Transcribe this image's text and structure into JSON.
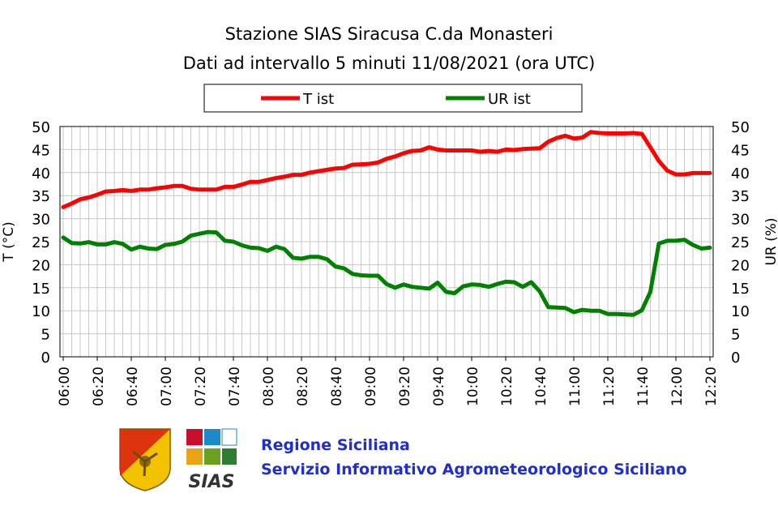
{
  "title_line1": "Stazione SIAS Siracusa C.da Monasteri",
  "title_line2": "Dati ad intervallo 5 minuti 11/08/2021 (ora UTC)",
  "footer": {
    "line1": "Regione Siciliana",
    "line2": "Servizio Informativo Agrometeorologico Siciliano",
    "logo_text": "SIAS"
  },
  "chart_data": {
    "type": "line",
    "title": "Stazione SIAS Siracusa C.da Monasteri / Dati ad intervallo 5 minuti 11/08/2021 (ora UTC)",
    "ylabel_left": "T (°C)",
    "ylabel_right": "UR (%)",
    "ylim": [
      0,
      50
    ],
    "yticks": [
      0,
      5,
      10,
      15,
      20,
      25,
      30,
      35,
      40,
      45,
      50
    ],
    "grid": true,
    "legend_position": "top",
    "x_tick_labels": [
      "06:00",
      "06:20",
      "06:40",
      "07:00",
      "07:20",
      "07:40",
      "08:00",
      "08:20",
      "08:40",
      "09:00",
      "09:20",
      "09:40",
      "10:00",
      "10:20",
      "10:40",
      "11:00",
      "11:20",
      "11:40",
      "12:00",
      "12:20"
    ],
    "x": [
      "06:00",
      "06:05",
      "06:10",
      "06:15",
      "06:20",
      "06:25",
      "06:30",
      "06:35",
      "06:40",
      "06:45",
      "06:50",
      "06:55",
      "07:00",
      "07:05",
      "07:10",
      "07:15",
      "07:20",
      "07:25",
      "07:30",
      "07:35",
      "07:40",
      "07:45",
      "07:50",
      "07:55",
      "08:00",
      "08:05",
      "08:10",
      "08:15",
      "08:20",
      "08:25",
      "08:30",
      "08:35",
      "08:40",
      "08:45",
      "08:50",
      "08:55",
      "09:00",
      "09:05",
      "09:10",
      "09:15",
      "09:20",
      "09:25",
      "09:30",
      "09:35",
      "09:40",
      "09:45",
      "09:50",
      "09:55",
      "10:00",
      "10:05",
      "10:10",
      "10:15",
      "10:20",
      "10:25",
      "10:30",
      "10:35",
      "10:40",
      "10:45",
      "10:50",
      "10:55",
      "11:00",
      "11:05",
      "11:10",
      "11:15",
      "11:20",
      "11:25",
      "11:30",
      "11:35",
      "11:40",
      "11:45",
      "11:50",
      "11:55",
      "12:00",
      "12:05",
      "12:10",
      "12:15",
      "12:20"
    ],
    "series": [
      {
        "name": "T ist",
        "color": "#ff0000",
        "values": [
          32.5,
          33.3,
          34.2,
          34.6,
          35.2,
          35.9,
          36.0,
          36.2,
          36.0,
          36.3,
          36.3,
          36.6,
          36.8,
          37.1,
          37.1,
          36.5,
          36.3,
          36.3,
          36.3,
          36.9,
          36.9,
          37.4,
          38.0,
          38.0,
          38.4,
          38.8,
          39.1,
          39.5,
          39.5,
          40.0,
          40.3,
          40.6,
          40.9,
          41.0,
          41.7,
          41.8,
          41.9,
          42.2,
          43.0,
          43.5,
          44.2,
          44.7,
          44.8,
          45.5,
          45.0,
          44.8,
          44.8,
          44.8,
          44.8,
          44.5,
          44.7,
          44.5,
          45.0,
          44.9,
          45.1,
          45.2,
          45.3,
          46.7,
          47.5,
          48.0,
          47.4,
          47.6,
          48.8,
          48.6,
          48.5,
          48.5,
          48.5,
          48.6,
          48.4,
          45.5,
          42.5,
          40.4,
          39.6,
          39.6,
          39.9,
          39.9,
          39.9
        ]
      },
      {
        "name": "UR ist",
        "color": "#008000",
        "values": [
          25.9,
          24.7,
          24.6,
          24.9,
          24.4,
          24.4,
          24.9,
          24.5,
          23.3,
          23.9,
          23.5,
          23.4,
          24.3,
          24.5,
          25.0,
          26.3,
          26.7,
          27.1,
          27.0,
          25.2,
          25.0,
          24.2,
          23.7,
          23.6,
          23.0,
          23.9,
          23.4,
          21.5,
          21.3,
          21.7,
          21.7,
          21.2,
          19.6,
          19.2,
          18.0,
          17.7,
          17.6,
          17.6,
          15.8,
          15.0,
          15.7,
          15.2,
          15.0,
          14.8,
          16.1,
          14.1,
          13.8,
          15.3,
          15.7,
          15.6,
          15.2,
          15.8,
          16.3,
          16.2,
          15.2,
          16.2,
          14.2,
          10.8,
          10.7,
          10.6,
          9.7,
          10.2,
          10.0,
          10.0,
          9.3,
          9.3,
          9.2,
          9.1,
          10.1,
          14.1,
          24.6,
          25.2,
          25.2,
          25.4,
          24.3,
          23.5,
          23.7
        ]
      }
    ]
  }
}
